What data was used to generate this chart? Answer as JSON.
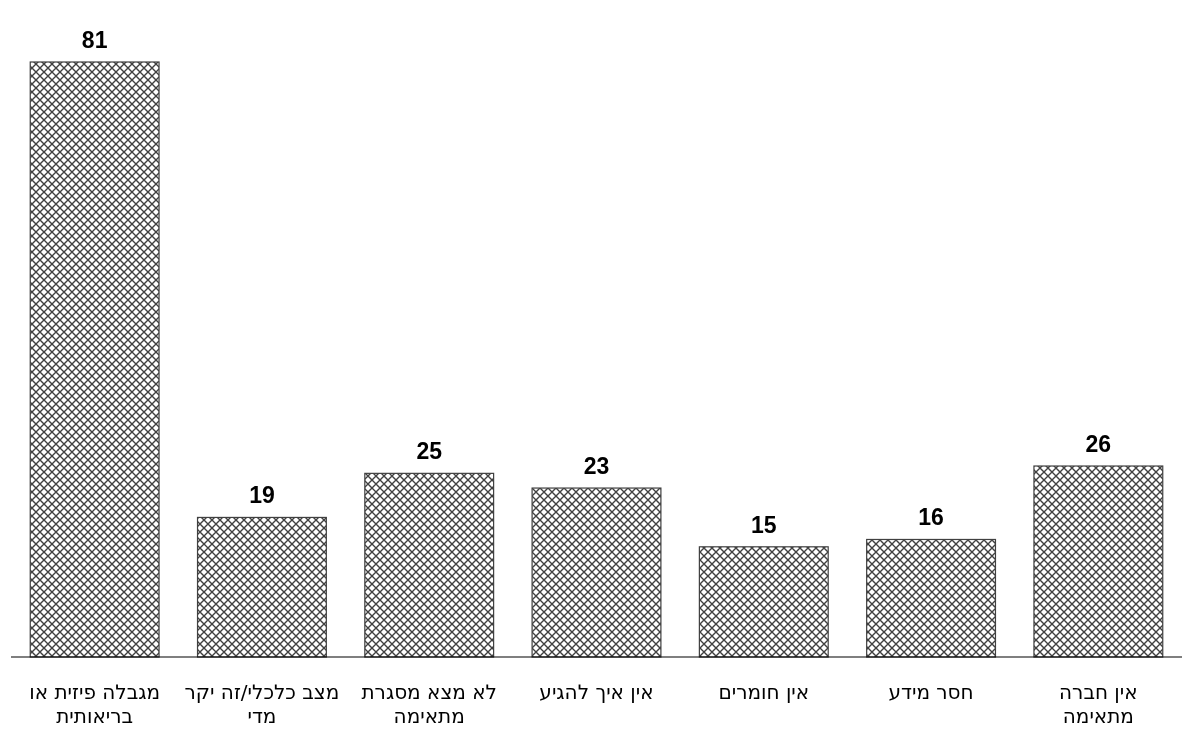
{
  "chart_data": {
    "type": "bar",
    "categories": [
      "מגבלה פיזית או בריאותית",
      "מצב כלכלי/זה יקר מדי",
      "לא מצא מסגרת מתאימה",
      "אין איך להגיע",
      "אין חומרים",
      "חסר מידע",
      "אין חברה מתאימה"
    ],
    "values": [
      81,
      19,
      25,
      23,
      15,
      16,
      26
    ],
    "color": "#404040",
    "data_labels": true
  }
}
